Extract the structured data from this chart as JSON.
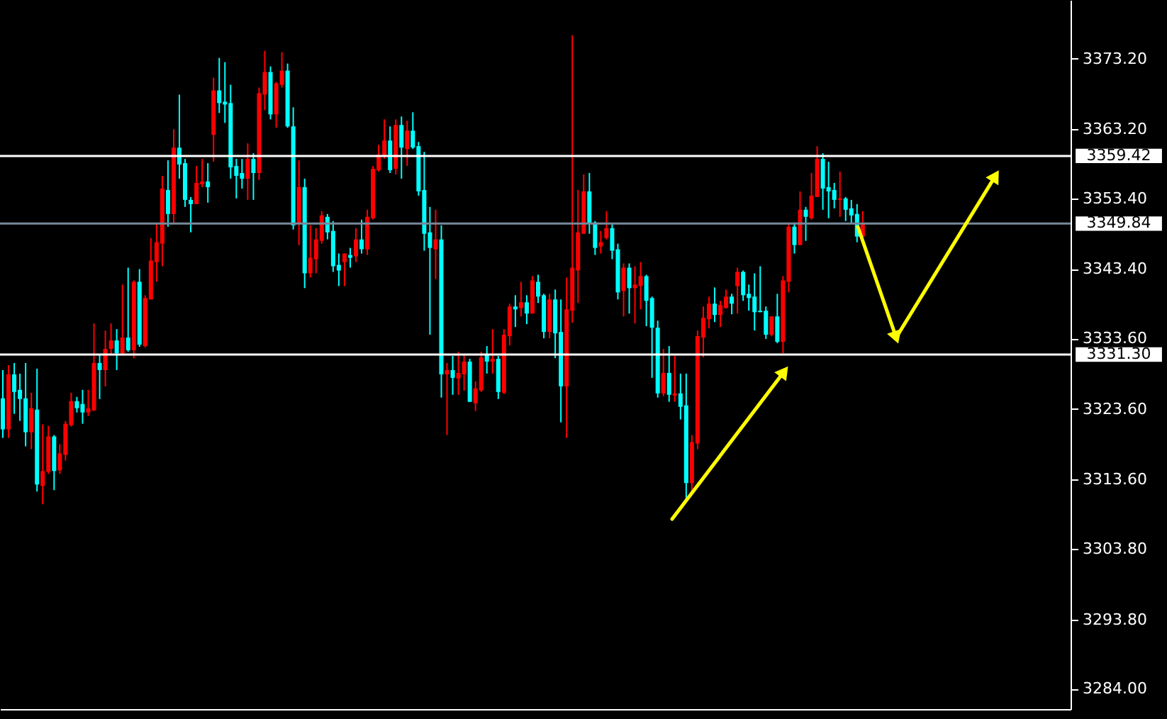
{
  "chart_data": {
    "type": "candlestick",
    "categories": [
      null,
      null,
      null,
      null,
      null,
      null,
      null,
      null,
      null,
      null,
      null,
      null,
      null,
      null,
      null,
      null,
      null,
      null,
      null,
      null,
      null,
      null,
      null,
      null,
      null,
      null,
      null,
      null,
      null,
      null,
      null,
      null,
      null,
      null,
      null,
      null,
      null,
      null,
      null,
      null,
      null,
      null,
      null,
      null,
      null,
      null,
      null,
      null,
      null,
      null,
      null,
      null,
      null,
      null,
      null,
      null,
      null,
      null,
      null,
      null,
      null,
      null,
      null,
      null,
      null,
      null,
      null,
      null,
      null,
      null,
      null,
      null,
      null,
      null,
      null,
      null,
      null,
      null,
      null,
      null,
      null,
      null,
      null,
      null,
      null,
      null,
      null,
      null,
      null,
      null,
      null,
      null,
      null,
      null,
      null,
      null,
      null,
      null,
      null,
      null,
      null,
      null,
      null,
      null,
      null,
      null,
      null,
      null,
      null,
      null,
      null,
      null,
      null,
      null,
      null,
      null,
      null,
      null,
      null,
      null,
      null,
      null,
      null,
      null,
      null,
      null,
      null,
      null,
      null,
      null,
      null,
      null,
      null,
      null,
      null,
      null,
      null,
      null,
      null,
      null,
      null,
      null,
      null,
      null,
      null,
      null,
      null,
      null,
      null,
      null,
      null,
      null,
      null,
      null,
      null,
      null,
      null,
      null,
      null,
      null,
      null,
      null,
      null,
      null,
      null,
      null,
      null,
      null,
      null,
      null,
      null,
      null,
      null,
      null,
      null,
      null,
      null,
      null,
      null,
      null,
      null,
      null,
      null,
      null,
      null,
      null,
      null,
      null
    ],
    "ohlc": [
      [
        3325.1,
        3329.1,
        3319.5,
        3320.7
      ],
      [
        3320.7,
        3329.8,
        3319.5,
        3328.5
      ],
      [
        3328.5,
        3330.1,
        3322.9,
        3326.0
      ],
      [
        3326.3,
        3328.6,
        3321.9,
        3325.0
      ],
      [
        3325.1,
        3330.1,
        3318.3,
        3320.3
      ],
      [
        3320.3,
        3325.9,
        3317.9,
        3323.7
      ],
      [
        3323.5,
        3329.3,
        3311.9,
        3312.9
      ],
      [
        3312.7,
        3321.4,
        3310.1,
        3314.8
      ],
      [
        3314.7,
        3321.2,
        3314.4,
        3319.7
      ],
      [
        3319.7,
        3319.9,
        3312.1,
        3314.8
      ],
      [
        3314.9,
        3318.6,
        3314.4,
        3317.3
      ],
      [
        3317.1,
        3321.9,
        3316.3,
        3321.5
      ],
      [
        3321.3,
        3325.9,
        3321.1,
        3324.7
      ],
      [
        3324.7,
        3325.3,
        3323.1,
        3323.7
      ],
      [
        3324.3,
        3326.3,
        3321.5,
        3323.1
      ],
      [
        3323.1,
        3326.3,
        3322.6,
        3323.7
      ],
      [
        3323.4,
        3335.7,
        3323.3,
        3330.1
      ],
      [
        3330.1,
        3331.3,
        3325.0,
        3329.1
      ],
      [
        3329.1,
        3334.7,
        3326.8,
        3332.1
      ],
      [
        3332.1,
        3335.7,
        3331.3,
        3333.3
      ],
      [
        3333.3,
        3334.9,
        3329.1,
        3331.5
      ],
      [
        3331.5,
        3341.2,
        3331.3,
        3333.7
      ],
      [
        3333.7,
        3343.6,
        3331.7,
        3331.9
      ],
      [
        3331.9,
        3341.8,
        3330.8,
        3341.6
      ],
      [
        3341.6,
        3343.4,
        3332.4,
        3332.7
      ],
      [
        3332.5,
        3339.7,
        3332.3,
        3339.3
      ],
      [
        3339.1,
        3347.8,
        3339.1,
        3344.6
      ],
      [
        3344.4,
        3349.8,
        3341.6,
        3347.2
      ],
      [
        3347.0,
        3356.6,
        3343.8,
        3354.8
      ],
      [
        3354.6,
        3358.8,
        3349.4,
        3351.2
      ],
      [
        3351.2,
        3363.2,
        3349.8,
        3360.6
      ],
      [
        3360.6,
        3368.1,
        3356.2,
        3358.2
      ],
      [
        3358.4,
        3359.0,
        3352.2,
        3353.2
      ],
      [
        3353.2,
        3353.6,
        3348.6,
        3352.6
      ],
      [
        3352.6,
        3358.0,
        3352.6,
        3355.6
      ],
      [
        3355.4,
        3359.0,
        3355.0,
        3355.8
      ],
      [
        3355.8,
        3358.4,
        3352.8,
        3355.0
      ],
      [
        3362.4,
        3370.5,
        3358.6,
        3368.7
      ],
      [
        3368.7,
        3373.3,
        3365.5,
        3366.9
      ],
      [
        3367.1,
        3372.7,
        3364.1,
        3366.7
      ],
      [
        3366.9,
        3369.5,
        3356.2,
        3357.8
      ],
      [
        3358.0,
        3359.0,
        3353.4,
        3356.6
      ],
      [
        3357.0,
        3359.0,
        3354.8,
        3356.2
      ],
      [
        3356.2,
        3361.2,
        3353.2,
        3359.0
      ],
      [
        3359.0,
        3359.8,
        3353.2,
        3357.0
      ],
      [
        3357.0,
        3369.1,
        3356.0,
        3368.3
      ],
      [
        3368.1,
        3374.3,
        3365.9,
        3371.3
      ],
      [
        3371.3,
        3372.1,
        3364.6,
        3365.3
      ],
      [
        3365.3,
        3369.9,
        3363.4,
        3369.7
      ],
      [
        3369.5,
        3374.1,
        3369.1,
        3371.5
      ],
      [
        3371.5,
        3372.5,
        3363.4,
        3363.6
      ],
      [
        3363.6,
        3366.3,
        3349.0,
        3349.6
      ],
      [
        3349.8,
        3358.8,
        3346.8,
        3355.0
      ],
      [
        3355.0,
        3356.2,
        3340.7,
        3342.8
      ],
      [
        3342.8,
        3349.6,
        3342.2,
        3345.0
      ],
      [
        3344.8,
        3349.2,
        3342.8,
        3347.6
      ],
      [
        3347.4,
        3351.6,
        3347.0,
        3351.0
      ],
      [
        3350.8,
        3351.2,
        3347.6,
        3348.6
      ],
      [
        3348.8,
        3350.2,
        3343.0,
        3343.8
      ],
      [
        3344.0,
        3345.6,
        3341.0,
        3343.2
      ],
      [
        3344.4,
        3345.6,
        3341.0,
        3345.6
      ],
      [
        3345.4,
        3346.4,
        3343.6,
        3345.0
      ],
      [
        3345.2,
        3349.2,
        3344.4,
        3347.6
      ],
      [
        3347.6,
        3350.4,
        3345.6,
        3346.2
      ],
      [
        3346.2,
        3351.8,
        3345.4,
        3350.8
      ],
      [
        3350.6,
        3358.0,
        3350.4,
        3357.6
      ],
      [
        3357.4,
        3361.0,
        3357.2,
        3359.6
      ],
      [
        3359.4,
        3364.6,
        3359.0,
        3361.6
      ],
      [
        3361.6,
        3363.6,
        3357.0,
        3357.4
      ],
      [
        3357.6,
        3364.6,
        3356.8,
        3363.8
      ],
      [
        3363.8,
        3365.0,
        3356.2,
        3360.6
      ],
      [
        3360.4,
        3364.4,
        3358.0,
        3363.0
      ],
      [
        3363.0,
        3365.6,
        3360.4,
        3360.6
      ],
      [
        3360.8,
        3361.4,
        3353.8,
        3354.4
      ],
      [
        3354.6,
        3360.0,
        3346.0,
        3348.4
      ],
      [
        3348.6,
        3352.2,
        3334.1,
        3346.4
      ],
      [
        3346.2,
        3351.8,
        3342.0,
        3347.6
      ],
      [
        3347.6,
        3349.6,
        3325.2,
        3328.5
      ],
      [
        3328.5,
        3330.1,
        3319.9,
        3329.1
      ],
      [
        3329.1,
        3331.1,
        3325.6,
        3328.0
      ],
      [
        3327.9,
        3331.7,
        3325.6,
        3328.7
      ],
      [
        3328.5,
        3331.3,
        3326.2,
        3330.3
      ],
      [
        3330.3,
        3330.7,
        3324.6,
        3324.6
      ],
      [
        3324.4,
        3327.5,
        3323.3,
        3326.5
      ],
      [
        3326.2,
        3331.7,
        3326.0,
        3330.9
      ],
      [
        3331.3,
        3332.5,
        3328.6,
        3330.3
      ],
      [
        3330.3,
        3334.9,
        3328.6,
        3330.7
      ],
      [
        3330.7,
        3331.1,
        3325.0,
        3326.0
      ],
      [
        3325.9,
        3334.9,
        3325.7,
        3334.1
      ],
      [
        3333.9,
        3338.5,
        3332.6,
        3338.1
      ],
      [
        3338.1,
        3339.7,
        3335.2,
        3337.7
      ],
      [
        3337.9,
        3341.6,
        3336.7,
        3338.7
      ],
      [
        3338.7,
        3339.7,
        3335.6,
        3337.1
      ],
      [
        3337.1,
        3342.4,
        3337.1,
        3341.8
      ],
      [
        3341.6,
        3342.6,
        3338.6,
        3339.5
      ],
      [
        3339.7,
        3339.9,
        3333.6,
        3334.5
      ],
      [
        3334.5,
        3339.9,
        3333.6,
        3339.1
      ],
      [
        3339.1,
        3340.5,
        3330.8,
        3334.3
      ],
      [
        3334.5,
        3339.1,
        3321.7,
        3326.8
      ],
      [
        3326.8,
        3342.2,
        3319.5,
        3337.7
      ],
      [
        3337.5,
        3376.5,
        3335.8,
        3343.6
      ],
      [
        3343.2,
        3354.6,
        3338.6,
        3348.6
      ],
      [
        3348.4,
        3356.8,
        3348.4,
        3354.4
      ],
      [
        3354.4,
        3357.0,
        3348.4,
        3349.8
      ],
      [
        3350.0,
        3350.2,
        3345.4,
        3346.4
      ],
      [
        3346.6,
        3348.8,
        3345.6,
        3347.2
      ],
      [
        3347.8,
        3351.6,
        3347.6,
        3349.2
      ],
      [
        3349.2,
        3349.8,
        3344.8,
        3346.0
      ],
      [
        3346.2,
        3347.0,
        3339.1,
        3340.1
      ],
      [
        3340.3,
        3344.2,
        3336.7,
        3343.6
      ],
      [
        3343.6,
        3344.2,
        3337.1,
        3340.7
      ],
      [
        3340.7,
        3343.8,
        3335.7,
        3341.2
      ],
      [
        3341.0,
        3344.4,
        3337.7,
        3342.4
      ],
      [
        3342.4,
        3342.6,
        3335.3,
        3338.9
      ],
      [
        3339.3,
        3339.5,
        3328.0,
        3335.1
      ],
      [
        3335.1,
        3336.1,
        3325.2,
        3325.8
      ],
      [
        3325.8,
        3332.1,
        3325.4,
        3328.7
      ],
      [
        3328.7,
        3332.5,
        3324.6,
        3325.6
      ],
      [
        3325.5,
        3331.1,
        3324.6,
        3325.8
      ],
      [
        3325.8,
        3328.6,
        3322.1,
        3323.9
      ],
      [
        3324.1,
        3328.6,
        3310.6,
        3313.1
      ],
      [
        3313.1,
        3319.9,
        3311.9,
        3318.9
      ],
      [
        3318.7,
        3334.7,
        3317.9,
        3333.9
      ],
      [
        3333.7,
        3338.1,
        3330.9,
        3336.5
      ],
      [
        3336.3,
        3339.5,
        3335.0,
        3338.5
      ],
      [
        3338.5,
        3340.8,
        3335.9,
        3336.9
      ],
      [
        3336.9,
        3338.9,
        3335.2,
        3338.3
      ],
      [
        3337.9,
        3340.5,
        3337.8,
        3339.5
      ],
      [
        3339.5,
        3339.9,
        3337.0,
        3338.5
      ],
      [
        3341.0,
        3343.6,
        3337.1,
        3343.0
      ],
      [
        3343.0,
        3343.2,
        3338.9,
        3339.7
      ],
      [
        3339.9,
        3341.2,
        3337.5,
        3339.3
      ],
      [
        3339.5,
        3342.8,
        3334.7,
        3337.3
      ],
      [
        3337.5,
        3343.8,
        3337.3,
        3337.3
      ],
      [
        3337.5,
        3338.1,
        3333.5,
        3334.1
      ],
      [
        3334.1,
        3336.7,
        3333.9,
        3336.7
      ],
      [
        3336.7,
        3339.9,
        3332.9,
        3333.1
      ],
      [
        3333.1,
        3342.4,
        3331.5,
        3341.8
      ],
      [
        3341.6,
        3350.0,
        3340.1,
        3349.4
      ],
      [
        3349.4,
        3350.0,
        3345.6,
        3346.8
      ],
      [
        3346.8,
        3354.4,
        3346.8,
        3351.8
      ],
      [
        3351.8,
        3352.2,
        3347.4,
        3350.8
      ],
      [
        3350.6,
        3357.0,
        3350.4,
        3353.8
      ],
      [
        3353.6,
        3360.8,
        3353.6,
        3359.0
      ],
      [
        3359.0,
        3359.8,
        3351.8,
        3354.8
      ],
      [
        3355.0,
        3358.6,
        3350.6,
        3354.4
      ],
      [
        3354.6,
        3355.6,
        3352.0,
        3353.2
      ],
      [
        3353.2,
        3357.2,
        3350.8,
        3353.4
      ],
      [
        3353.4,
        3353.6,
        3350.2,
        3351.8
      ],
      [
        3352.0,
        3353.2,
        3349.8,
        3351.0
      ],
      [
        3351.2,
        3352.6,
        3347.2,
        3348.0
      ],
      [
        3348.0,
        3351.6,
        3347.8,
        3349.8
      ],
      null,
      null,
      null,
      null,
      null,
      null,
      null,
      null,
      null,
      null,
      null,
      null,
      null,
      null,
      null,
      null,
      null,
      null,
      null,
      null,
      null,
      null,
      null,
      null,
      null,
      null,
      null,
      null,
      null,
      null,
      null,
      null,
      null,
      null,
      null,
      null
    ],
    "colors": [
      "#00ffff",
      "#ff0000",
      "#00ffff",
      "#00ffff",
      "#00ffff",
      "#ff0000",
      "#00ffff",
      "#ff0000",
      "#ff0000",
      "#00ffff",
      "#ff0000",
      "#ff0000",
      "#ff0000",
      "#00ffff",
      "#00ffff",
      "#ff0000",
      "#ff0000",
      "#00ffff",
      "#ff0000",
      "#ff0000",
      "#00ffff",
      "#ff0000",
      "#00ffff",
      "#ff0000",
      "#00ffff",
      "#ff0000",
      "#ff0000",
      "#ff0000",
      "#ff0000",
      "#00ffff",
      "#ff0000",
      "#00ffff",
      "#00ffff",
      "#00ffff",
      "#ff0000",
      "#ff0000",
      "#00ffff",
      "#ff0000",
      "#00ffff",
      "#00ffff",
      "#00ffff",
      "#00ffff",
      "#00ffff",
      "#ff0000",
      "#00ffff",
      "#ff0000",
      "#ff0000",
      "#00ffff",
      "#ff0000",
      "#ff0000",
      "#00ffff",
      "#00ffff",
      "#ff0000",
      "#00ffff",
      "#ff0000",
      "#ff0000",
      "#ff0000",
      "#00ffff",
      "#00ffff",
      "#00ffff",
      "#ff0000",
      "#00ffff",
      "#ff0000",
      "#00ffff",
      "#ff0000",
      "#ff0000",
      "#ff0000",
      "#ff0000",
      "#00ffff",
      "#ff0000",
      "#00ffff",
      "#ff0000",
      "#00ffff",
      "#00ffff",
      "#00ffff",
      "#00ffff",
      "#ff0000",
      "#00ffff",
      "#ff0000",
      "#00ffff",
      "#ff0000",
      "#ff0000",
      "#00ffff",
      "#ff0000",
      "#ff0000",
      "#00ffff",
      "#ff0000",
      "#00ffff",
      "#ff0000",
      "#ff0000",
      "#00ffff",
      "#ff0000",
      "#00ffff",
      "#ff0000",
      "#00ffff",
      "#00ffff",
      "#ff0000",
      "#00ffff",
      "#00ffff",
      "#ff0000",
      "#ff0000",
      "#ff0000",
      "#ff0000",
      "#00ffff",
      "#00ffff",
      "#ff0000",
      "#ff0000",
      "#00ffff",
      "#00ffff",
      "#ff0000",
      "#00ffff",
      "#ff0000",
      "#ff0000",
      "#00ffff",
      "#00ffff",
      "#00ffff",
      "#ff0000",
      "#00ffff",
      "#ff0000",
      "#00ffff",
      "#00ffff",
      "#ff0000",
      "#ff0000",
      "#ff0000",
      "#ff0000",
      "#00ffff",
      "#ff0000",
      "#ff0000",
      "#00ffff",
      "#ff0000",
      "#00ffff",
      "#00ffff",
      "#00ffff",
      "#00ffff",
      "#00ffff",
      "#ff0000",
      "#00ffff",
      "#ff0000",
      "#ff0000",
      "#00ffff",
      "#ff0000",
      "#00ffff",
      "#ff0000",
      "#ff0000",
      "#00ffff",
      "#00ffff",
      "#00ffff",
      "#ff0000",
      "#00ffff",
      "#00ffff",
      "#00ffff",
      "#ff0000",
      null,
      null,
      null,
      null,
      null,
      null,
      null,
      null,
      null,
      null,
      null,
      null,
      null,
      null,
      null,
      null,
      null,
      null,
      null,
      null,
      null,
      null,
      null,
      null,
      null,
      null,
      null,
      null,
      null,
      null,
      null,
      null,
      null,
      null,
      null,
      null
    ],
    "ylim": [
      3281.1,
      3381.5
    ],
    "yticks": [
      {
        "value": 3284,
        "label": "3284.00"
      },
      {
        "value": 3293.8,
        "label": "3293.80"
      },
      {
        "value": 3303.8,
        "label": "3303.80"
      },
      {
        "value": 3313.6,
        "label": "3313.60"
      },
      {
        "value": 3323.6,
        "label": "3323.60"
      },
      {
        "value": 3333.6,
        "label": "3333.60"
      },
      {
        "value": 3343.4,
        "label": "3343.40"
      },
      {
        "value": 3353.4,
        "label": "3353.40"
      },
      {
        "value": 3363.2,
        "label": "3363.20"
      },
      {
        "value": 3373.2,
        "label": "3373.20"
      }
    ],
    "ref_lines": [
      {
        "axis": "y",
        "value": 3359.42,
        "label": "3359.42",
        "color": "#ffffff"
      },
      {
        "axis": "y",
        "value": 3349.84,
        "label": "3349.84",
        "color": "#778899"
      },
      {
        "axis": "y",
        "value": 3331.3,
        "label": "3331.30",
        "color": "#ffffff"
      }
    ],
    "grid": false,
    "tick_labels": "y"
  }
}
